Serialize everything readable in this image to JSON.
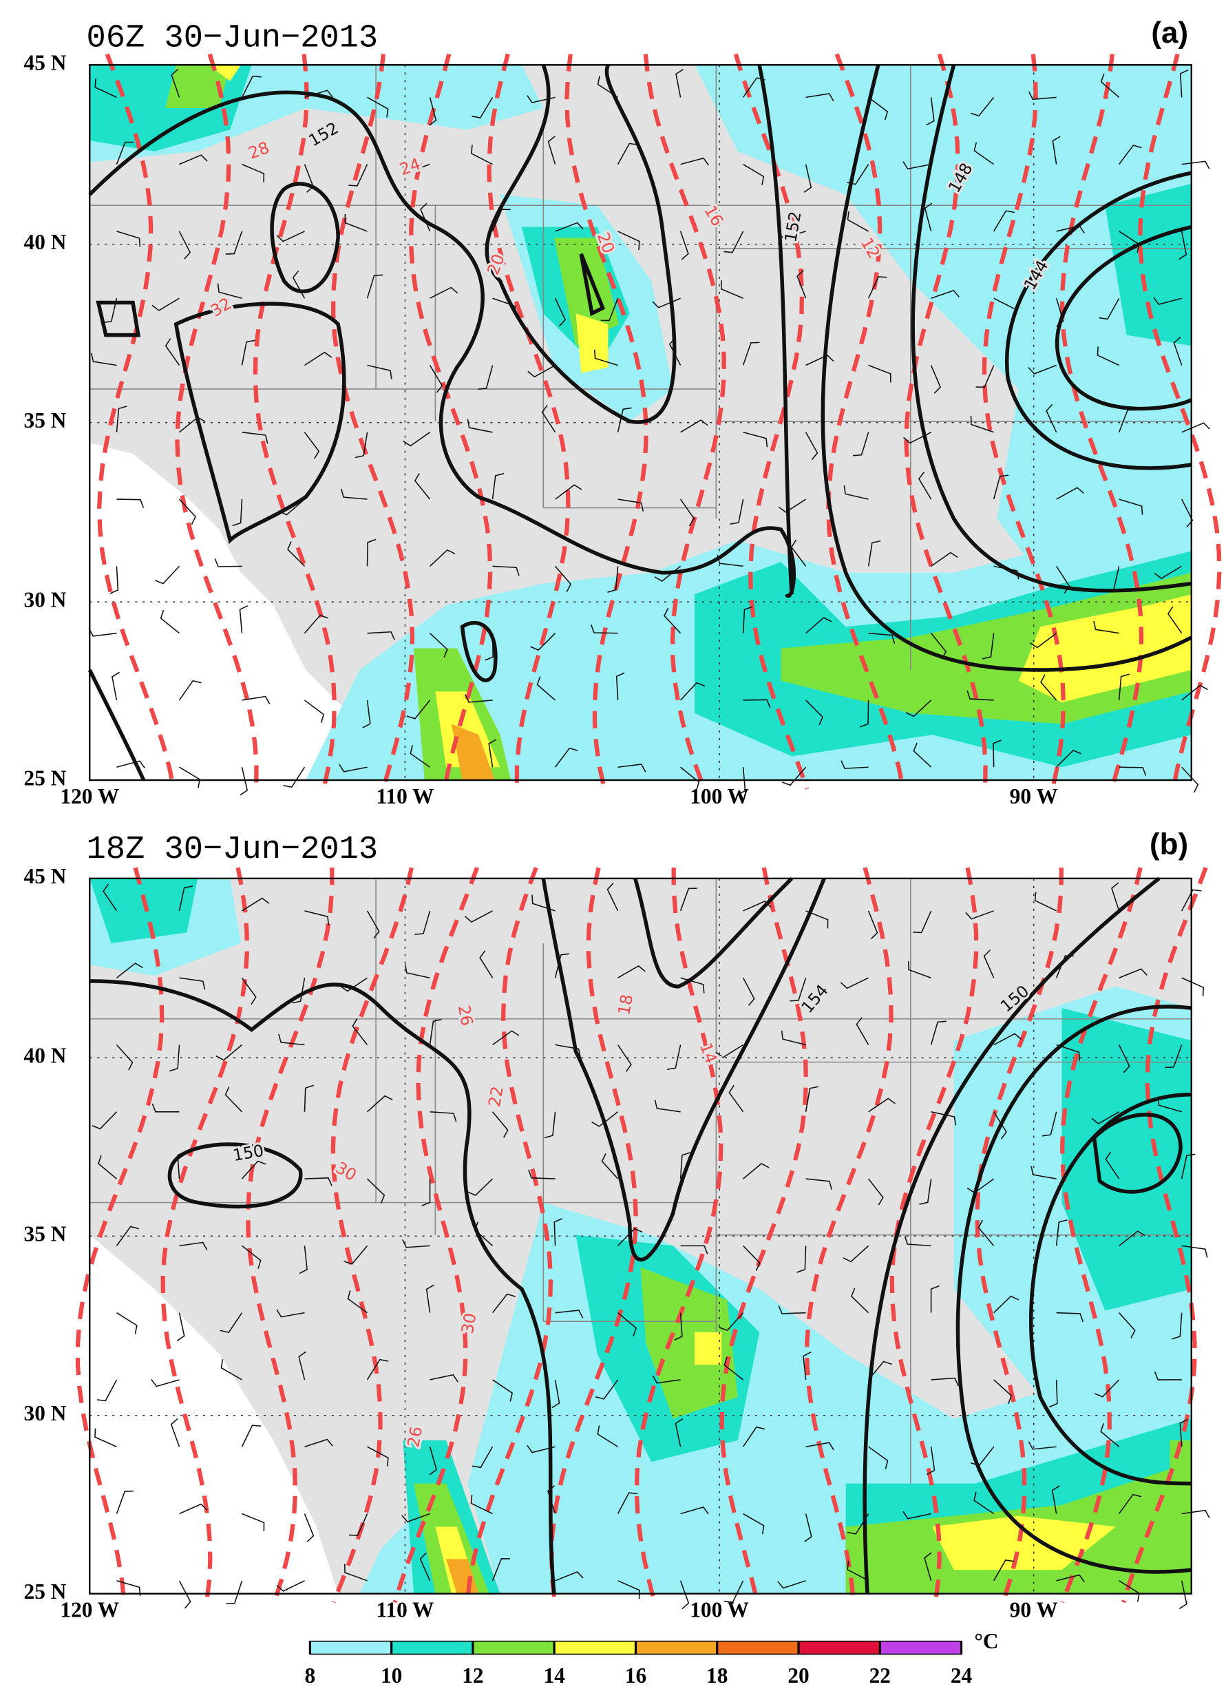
{
  "panels": [
    {
      "title": "06Z 30−Jun−2013",
      "label": "(a)",
      "height_contour_labels": [
        "152",
        "152",
        "148",
        "144"
      ],
      "temperature_contour_labels": [
        "28",
        "24",
        "32",
        "20",
        "20",
        "16",
        "12"
      ]
    },
    {
      "title": "18Z 30−Jun−2013",
      "label": "(b)",
      "height_contour_labels": [
        "150",
        "154",
        "150"
      ],
      "temperature_contour_labels": [
        "26",
        "22",
        "18",
        "14",
        "30",
        "30",
        "26"
      ]
    }
  ],
  "lat_labels": [
    "45 N",
    "40 N",
    "35 N",
    "30 N",
    "25 N"
  ],
  "lon_labels": [
    "120 W",
    "110 W",
    "100 W",
    "90 W"
  ],
  "colorbar": {
    "ticks": [
      8,
      10,
      12,
      14,
      16,
      18,
      20,
      22,
      24
    ],
    "colors": [
      "#9bf0f5",
      "#1fe0c8",
      "#7de33a",
      "#ffff40",
      "#f5a623",
      "#f06d1a",
      "#e0103a",
      "#c040e8"
    ],
    "unit": "°C"
  }
}
